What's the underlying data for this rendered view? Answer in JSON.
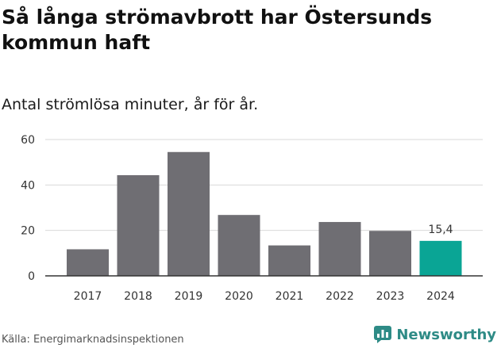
{
  "title": "Så långa strömavbrott har Östersunds kommun haft",
  "subtitle": "Antal strömlösa minuter, år för år.",
  "source": "Källa: Energimarknadsinspektionen",
  "brand": {
    "name": "Newsworthy",
    "icon": "newsworthy-logo-icon",
    "color": "#2e8b86"
  },
  "colors": {
    "bar": "#6f6e73",
    "highlight": "#0aa595",
    "grid": "#d9d9d9",
    "axis": "#333333",
    "text": "#333333"
  },
  "chart_data": {
    "type": "bar",
    "title": "Så långa strömavbrott har Östersunds kommun haft",
    "subtitle": "Antal strömlösa minuter, år för år.",
    "xlabel": "",
    "ylabel": "",
    "categories": [
      "2017",
      "2018",
      "2019",
      "2020",
      "2021",
      "2022",
      "2023",
      "2024"
    ],
    "values": [
      11.7,
      44.3,
      54.5,
      26.8,
      13.4,
      23.7,
      19.8,
      15.4
    ],
    "ylim": [
      0,
      60
    ],
    "yticks": [
      0,
      20,
      40,
      60
    ],
    "grid": true,
    "highlight_index": 7,
    "data_labels": [
      {
        "index": 7,
        "text": "15,4"
      }
    ]
  }
}
